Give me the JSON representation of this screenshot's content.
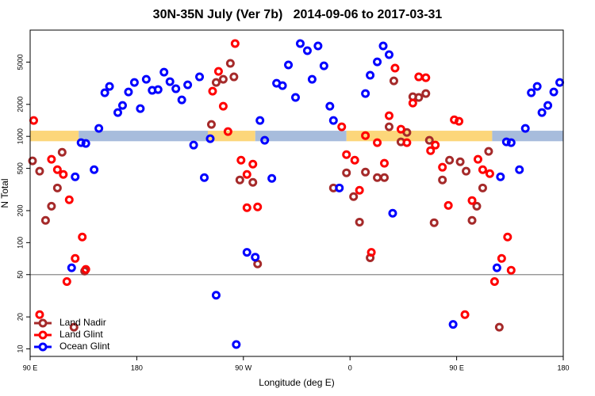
{
  "chart_data": {
    "type": "scatter",
    "title": "30N-35N July (Ver 7b)   2014-09-06 to 2017-03-31",
    "x_label": "Longitude (deg E)",
    "y_label": "N Total",
    "xlim": [
      90,
      540
    ],
    "xticks": [
      {
        "value": 90,
        "label": "90 E"
      },
      180,
      {
        "value": 270,
        "label": "90 W"
      },
      {
        "value": 360,
        "label": "0"
      },
      {
        "value": 450,
        "label": "90 E"
      },
      {
        "value": 540,
        "label": "180"
      }
    ],
    "ylim": [
      8.5,
      10000
    ],
    "log_y": true,
    "yticks": [
      10,
      20,
      50,
      100,
      200,
      500,
      1000,
      2000,
      5000
    ],
    "hline": 50,
    "hline_color": "#888888",
    "band": {
      "ylim": [
        900,
        1130
      ],
      "segments": [
        {
          "xlim": [
            90,
            131
          ],
          "color": "#fcd67a"
        },
        {
          "xlim": [
            131,
            240
          ],
          "color": "#a7bcdc"
        },
        {
          "xlim": [
            240,
            280
          ],
          "color": "#fcd67a"
        },
        {
          "xlim": [
            280,
            357
          ],
          "color": "#a7bcdc"
        },
        {
          "xlim": [
            357,
            480
          ],
          "color": "#fcd67a"
        },
        {
          "xlim": [
            480,
            540
          ],
          "color": "#a7bcdc"
        }
      ]
    },
    "legend": "bottom left",
    "series": [
      {
        "name": "Land Nadir",
        "color": "#a52a2a",
        "x": [
          92,
          98,
          103,
          108,
          113,
          117,
          127,
          136,
          243,
          247,
          253,
          259,
          262,
          267,
          278,
          282,
          346,
          357,
          363,
          368,
          373,
          377,
          383,
          389,
          393,
          397,
          403,
          408,
          413,
          418,
          424,
          427,
          431,
          438,
          444,
          453,
          458,
          463,
          467,
          472,
          477,
          486
        ],
        "values": [
          588,
          470,
          162,
          220,
          327,
          709,
          16,
          54,
          1294,
          3216,
          3445,
          4860,
          3630,
          389,
          369,
          63,
          327,
          454,
          271,
          156,
          461,
          72,
          409,
          409,
          1229,
          3329,
          887,
          1089,
          2361,
          2323,
          2529,
          918,
          154,
          389,
          597,
          577,
          470,
          162,
          220,
          327,
          722,
          16
        ]
      },
      {
        "name": "Land Glint",
        "color": "#ff0000",
        "x": [
          93,
          98,
          108,
          113,
          118,
          123,
          121,
          128,
          134,
          137,
          244,
          249,
          253,
          257,
          263,
          268,
          273,
          273,
          278,
          282,
          353,
          357,
          364,
          368,
          373,
          378,
          383,
          389,
          393,
          398,
          403,
          408,
          413,
          418,
          424,
          428,
          432,
          438,
          443,
          448,
          452,
          457,
          463,
          468,
          472,
          478,
          482,
          488,
          493,
          496
        ],
        "values": [
          1410,
          21,
          608,
          486,
          438,
          253,
          43,
          71,
          113,
          56,
          2663,
          4091,
          1921,
          1109,
          7464,
          597,
          438,
          213,
          548,
          217,
          1229,
          673,
          597,
          311,
          1017,
          81,
          872,
          558,
          1563,
          4385,
          1167,
          872,
          2058,
          3630,
          3566,
          734,
          828,
          512,
          224,
          1433,
          1387,
          21,
          249,
          608,
          486,
          446,
          43,
          71,
          113,
          55
        ]
      },
      {
        "name": "Ocean Glint",
        "color": "#0000ff",
        "x": [
          125,
          128,
          133,
          137,
          144,
          148,
          153,
          157,
          164,
          168,
          173,
          178,
          183,
          188,
          193,
          198,
          203,
          208,
          213,
          218,
          223,
          228,
          233,
          237,
          242,
          247,
          264,
          273,
          280,
          284,
          288,
          294,
          298,
          303,
          308,
          314,
          318,
          324,
          328,
          333,
          338,
          343,
          346,
          351,
          373,
          377,
          383,
          388,
          393,
          396,
          447,
          484,
          487,
          492,
          496,
          503,
          508,
          513,
          518,
          522,
          527,
          532,
          537
        ],
        "values": [
          58,
          416,
          872,
          857,
          486,
          1188,
          2572,
          2953,
          1674,
          1955,
          2618,
          3216,
          1825,
          3445,
          2711,
          2754,
          4018,
          3274,
          2806,
          2204,
          3054,
          828,
          3630,
          409,
          950,
          32,
          11,
          81,
          73,
          1410,
          918,
          402,
          3162,
          3004,
          4697,
          2323,
          7464,
          6398,
          3445,
          7096,
          4613,
          1921,
          1410,
          327,
          2529,
          3757,
          5026,
          7096,
          5871,
          189,
          17,
          58,
          416,
          887,
          872,
          486,
          1188,
          2572,
          2953,
          1674,
          1955,
          2618,
          3216
        ]
      }
    ]
  }
}
